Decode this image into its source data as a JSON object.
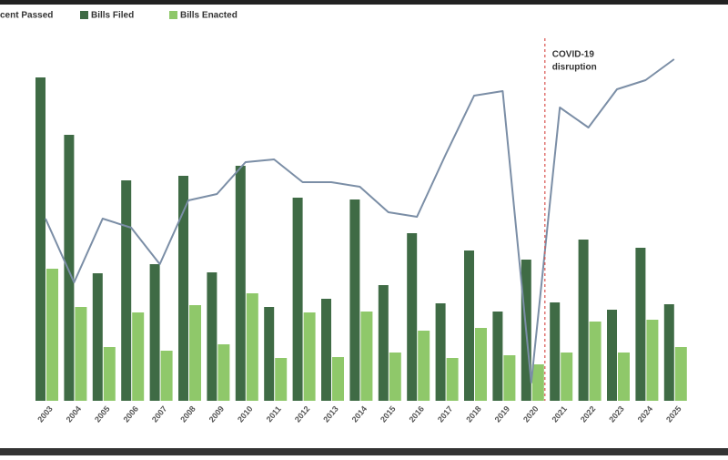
{
  "chart_data": {
    "type": "bar",
    "legend": [
      "cent Passed",
      "Bills Filed",
      "Bills Enacted"
    ],
    "annotation": [
      "COVID-19",
      "disruption"
    ],
    "categories": [
      "2003",
      "2004",
      "2005",
      "2006",
      "2007",
      "2008",
      "2009",
      "2010",
      "2011",
      "2012",
      "2013",
      "2014",
      "2015",
      "2016",
      "2017",
      "2018",
      "2019",
      "2020",
      "2021",
      "2022",
      "2023",
      "2024",
      "2025"
    ],
    "series": [
      {
        "name": "Bills Filed",
        "color": "#3f6b45",
        "values": [
          355,
          292,
          140,
          242,
          150,
          247,
          141,
          258,
          103,
          223,
          112,
          221,
          127,
          184,
          107,
          165,
          98,
          155,
          108,
          177,
          100,
          168,
          106
        ]
      },
      {
        "name": "Bills Enacted",
        "color": "#8fc86a",
        "values": [
          145,
          103,
          59,
          97,
          55,
          105,
          62,
          118,
          47,
          97,
          48,
          98,
          53,
          77,
          47,
          80,
          50,
          40,
          53,
          87,
          53,
          89,
          59
        ]
      },
      {
        "name": "Percent Passed",
        "color": "#7b8ea6",
        "type": "line",
        "values": [
          200,
          130,
          200,
          190,
          150,
          220,
          227,
          262,
          265,
          240,
          240,
          235,
          207,
          202,
          270,
          335,
          340,
          20,
          322,
          300,
          342,
          352,
          375
        ]
      }
    ],
    "ylim": [
      0,
      400
    ]
  }
}
